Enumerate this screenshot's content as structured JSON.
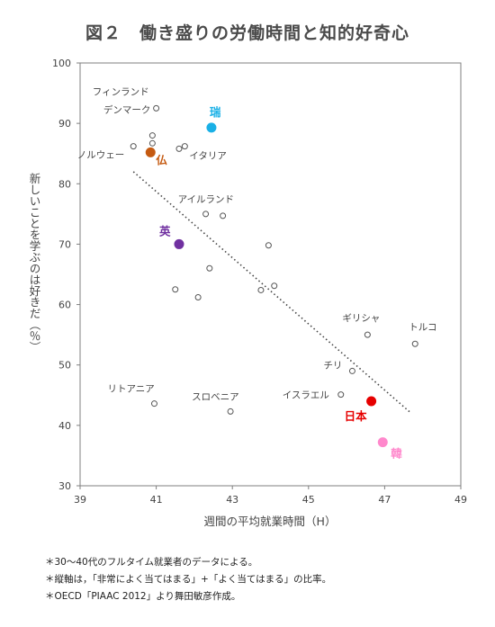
{
  "chart_data": {
    "type": "scatter",
    "title": "図２　働き盛りの労働時間と知的好奇心",
    "xlabel": "週間の平均就業時間（H）",
    "ylabel": "新しいことを学ぶのは好きだ（％）",
    "xlim": [
      39,
      49
    ],
    "ylim": [
      30,
      100
    ],
    "xticks": [
      "39",
      "41",
      "43",
      "45",
      "47",
      "49"
    ],
    "yticks": [
      "30",
      "40",
      "50",
      "60",
      "70",
      "80",
      "90",
      "100"
    ],
    "grid": false,
    "legend": "none",
    "trendline": {
      "x1": 40.4,
      "y1": 82,
      "x2": 47.7,
      "y2": 42
    },
    "points": [
      {
        "label": "フィンランド",
        "x": 41.0,
        "y": 92.5,
        "highlight": false,
        "color": ""
      },
      {
        "label": "デンマーク",
        "x": 40.9,
        "y": 88.0,
        "highlight": false,
        "color": ""
      },
      {
        "label": "",
        "x": 40.9,
        "y": 86.7,
        "highlight": false,
        "color": ""
      },
      {
        "label": "ノルウェー",
        "x": 40.4,
        "y": 86.2,
        "highlight": false,
        "color": ""
      },
      {
        "label": "",
        "x": 41.6,
        "y": 85.8,
        "highlight": false,
        "color": ""
      },
      {
        "label": "イタリア",
        "x": 41.75,
        "y": 86.2,
        "highlight": false,
        "color": ""
      },
      {
        "label": "アイルランド",
        "x": 42.3,
        "y": 75.0,
        "highlight": false,
        "color": ""
      },
      {
        "label": "",
        "x": 42.75,
        "y": 74.7,
        "highlight": false,
        "color": ""
      },
      {
        "label": "",
        "x": 43.95,
        "y": 69.8,
        "highlight": false,
        "color": ""
      },
      {
        "label": "",
        "x": 42.4,
        "y": 66.0,
        "highlight": false,
        "color": ""
      },
      {
        "label": "",
        "x": 41.5,
        "y": 62.5,
        "highlight": false,
        "color": ""
      },
      {
        "label": "",
        "x": 42.1,
        "y": 61.2,
        "highlight": false,
        "color": ""
      },
      {
        "label": "",
        "x": 43.75,
        "y": 62.4,
        "highlight": false,
        "color": ""
      },
      {
        "label": "",
        "x": 44.1,
        "y": 63.1,
        "highlight": false,
        "color": ""
      },
      {
        "label": "ギリシャ",
        "x": 46.55,
        "y": 55.0,
        "highlight": false,
        "color": ""
      },
      {
        "label": "トルコ",
        "x": 47.8,
        "y": 53.5,
        "highlight": false,
        "color": ""
      },
      {
        "label": "チリ",
        "x": 46.15,
        "y": 49.0,
        "highlight": false,
        "color": ""
      },
      {
        "label": "イスラエル",
        "x": 45.85,
        "y": 45.1,
        "highlight": false,
        "color": ""
      },
      {
        "label": "リトアニア",
        "x": 40.95,
        "y": 43.6,
        "highlight": false,
        "color": ""
      },
      {
        "label": "スロベニア",
        "x": 42.95,
        "y": 42.3,
        "highlight": false,
        "color": ""
      },
      {
        "label": "瑞",
        "x": 42.45,
        "y": 89.3,
        "highlight": true,
        "color": "#1ab0e6"
      },
      {
        "label": "仏",
        "x": 40.85,
        "y": 85.2,
        "highlight": true,
        "color": "#c55a11"
      },
      {
        "label": "英",
        "x": 41.6,
        "y": 70.0,
        "highlight": true,
        "color": "#7030a0"
      },
      {
        "label": "日本",
        "x": 46.65,
        "y": 44.0,
        "highlight": true,
        "color": "#e60000"
      },
      {
        "label": "韓",
        "x": 46.95,
        "y": 37.2,
        "highlight": true,
        "color": "#ff88cc"
      }
    ]
  },
  "notes": [
    "＊30～40代のフルタイム就業者のデータによる。",
    "＊縦軸は，「非常によく当てはまる」+「よく当てはまる」の比率。",
    "＊OECD「PIAAC 2012」より舞田敏彦作成。"
  ]
}
